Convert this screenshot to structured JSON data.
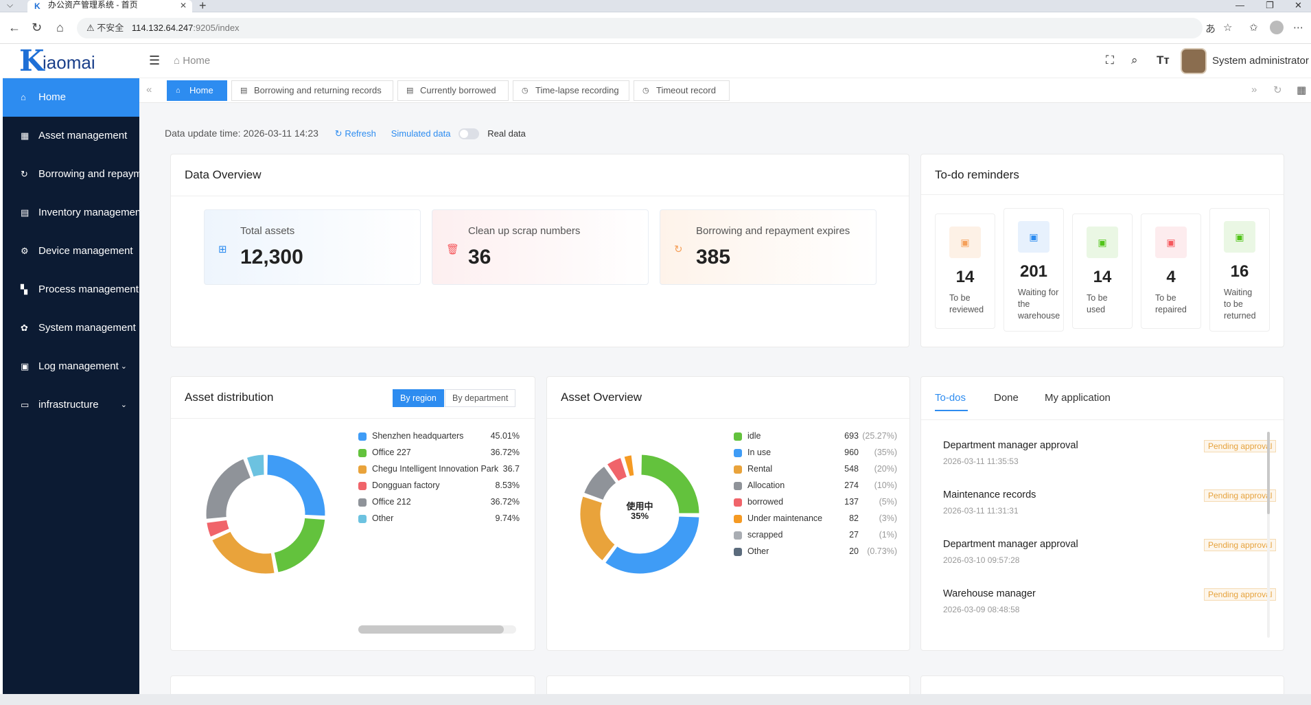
{
  "browser": {
    "tab_title": "办公资产管理系统 - 首页",
    "url_warning": "不安全",
    "url_host": "114.132.64.247",
    "url_path": ":9205/index"
  },
  "brand": {
    "logo_text": "iaomai"
  },
  "sidebar": {
    "items": [
      {
        "label": "Home",
        "icon": "home-icon"
      },
      {
        "label": "Asset management",
        "icon": "asset-icon"
      },
      {
        "label": "Borrowing and repayment",
        "icon": "borrow-icon"
      },
      {
        "label": "Inventory management",
        "icon": "inventory-icon"
      },
      {
        "label": "Device management",
        "icon": "device-icon"
      },
      {
        "label": "Process management",
        "icon": "process-icon"
      },
      {
        "label": "System management",
        "icon": "gear-icon"
      },
      {
        "label": "Log management",
        "icon": "log-icon"
      },
      {
        "label": "infrastructure",
        "icon": "infra-icon"
      }
    ]
  },
  "header": {
    "breadcrumb": "Home",
    "username": "System administrator"
  },
  "tabs": [
    {
      "label": "Home"
    },
    {
      "label": "Borrowing and returning records"
    },
    {
      "label": "Currently borrowed"
    },
    {
      "label": "Time-lapse recording"
    },
    {
      "label": "Timeout record"
    }
  ],
  "toolbar": {
    "update_time": "Data update time: 2026-03-11 14:23",
    "refresh": "Refresh",
    "simulated": "Simulated data",
    "real": "Real data"
  },
  "data_overview": {
    "title": "Data Overview",
    "items": [
      {
        "label": "Total assets",
        "value": "12,300"
      },
      {
        "label": "Clean up scrap numbers",
        "value": "36"
      },
      {
        "label": "Borrowing and repayment expires",
        "value": "385"
      }
    ]
  },
  "todo_reminders": {
    "title": "To-do reminders",
    "items": [
      {
        "value": "14",
        "l1": "To be",
        "l2": "reviewed",
        "l3": "",
        "color": "#f5a05a",
        "bg": "#fdf1e6"
      },
      {
        "value": "201",
        "l1": "Waiting for",
        "l2": "the",
        "l3": "warehouse",
        "color": "#2d8cf0",
        "bg": "#e7f1fd"
      },
      {
        "value": "14",
        "l1": "To be",
        "l2": "used",
        "l3": "",
        "color": "#52c41a",
        "bg": "#eaf7e4"
      },
      {
        "value": "4",
        "l1": "To be",
        "l2": "repaired",
        "l3": "",
        "color": "#f5585d",
        "bg": "#fdecee"
      },
      {
        "value": "16",
        "l1": "Waiting",
        "l2": "to be",
        "l3": "returned",
        "color": "#52c41a",
        "bg": "#eaf7e4"
      }
    ]
  },
  "asset_distribution": {
    "title": "Asset distribution",
    "seg_region": "By region",
    "seg_department": "By department",
    "scroll_fraction": 0.92
  },
  "asset_overview": {
    "title": "Asset Overview",
    "center_label": "使用中",
    "center_value": "35%"
  },
  "process_tabs": {
    "todos": "To-dos",
    "done": "Done",
    "my_app": "My application",
    "items": [
      {
        "title": "Department manager approval",
        "time": "2026-03-11 11:35:53",
        "status": "Pending approval"
      },
      {
        "title": "Maintenance records",
        "time": "2026-03-11 11:31:31",
        "status": "Pending approval"
      },
      {
        "title": "Department manager approval",
        "time": "2026-03-10 09:57:28",
        "status": "Pending approval"
      },
      {
        "title": "Warehouse manager",
        "time": "2026-03-09 08:48:58",
        "status": "Pending approval"
      }
    ]
  },
  "chart_data": [
    {
      "type": "pie",
      "title": "Asset distribution",
      "categories": [
        "Shenzhen headquarters",
        "Office 227",
        "Chegu Intelligent Innovation Park",
        "Dongguan factory",
        "Office 212",
        "Other"
      ],
      "values": [
        45.01,
        36.72,
        36.7,
        8.53,
        36.72,
        9.74
      ],
      "labels": [
        "45.01%",
        "36.72%",
        "36.7",
        "8.53%",
        "36.72%",
        "9.74%"
      ],
      "colors": [
        "#3f9cf6",
        "#63c23d",
        "#e9a33b",
        "#f0646a",
        "#8f9399",
        "#6cc2e0"
      ]
    },
    {
      "type": "pie",
      "title": "Asset Overview",
      "categories": [
        "idle",
        "In use",
        "Rental",
        "Allocation",
        "borrowed",
        "Under maintenance",
        "scrapped",
        "Other"
      ],
      "values": [
        693,
        960,
        548,
        274,
        137,
        82,
        27,
        20
      ],
      "percent_labels": [
        "(25.27%)",
        "(35%)",
        "(20%)",
        "(10%)",
        "(5%)",
        "(3%)",
        "(1%)",
        "(0.73%)"
      ],
      "colors": [
        "#63c23d",
        "#3f9cf6",
        "#e9a33b",
        "#8f9399",
        "#f0646a",
        "#f59a23",
        "#a9adb3",
        "#5b6b7c"
      ]
    }
  ]
}
